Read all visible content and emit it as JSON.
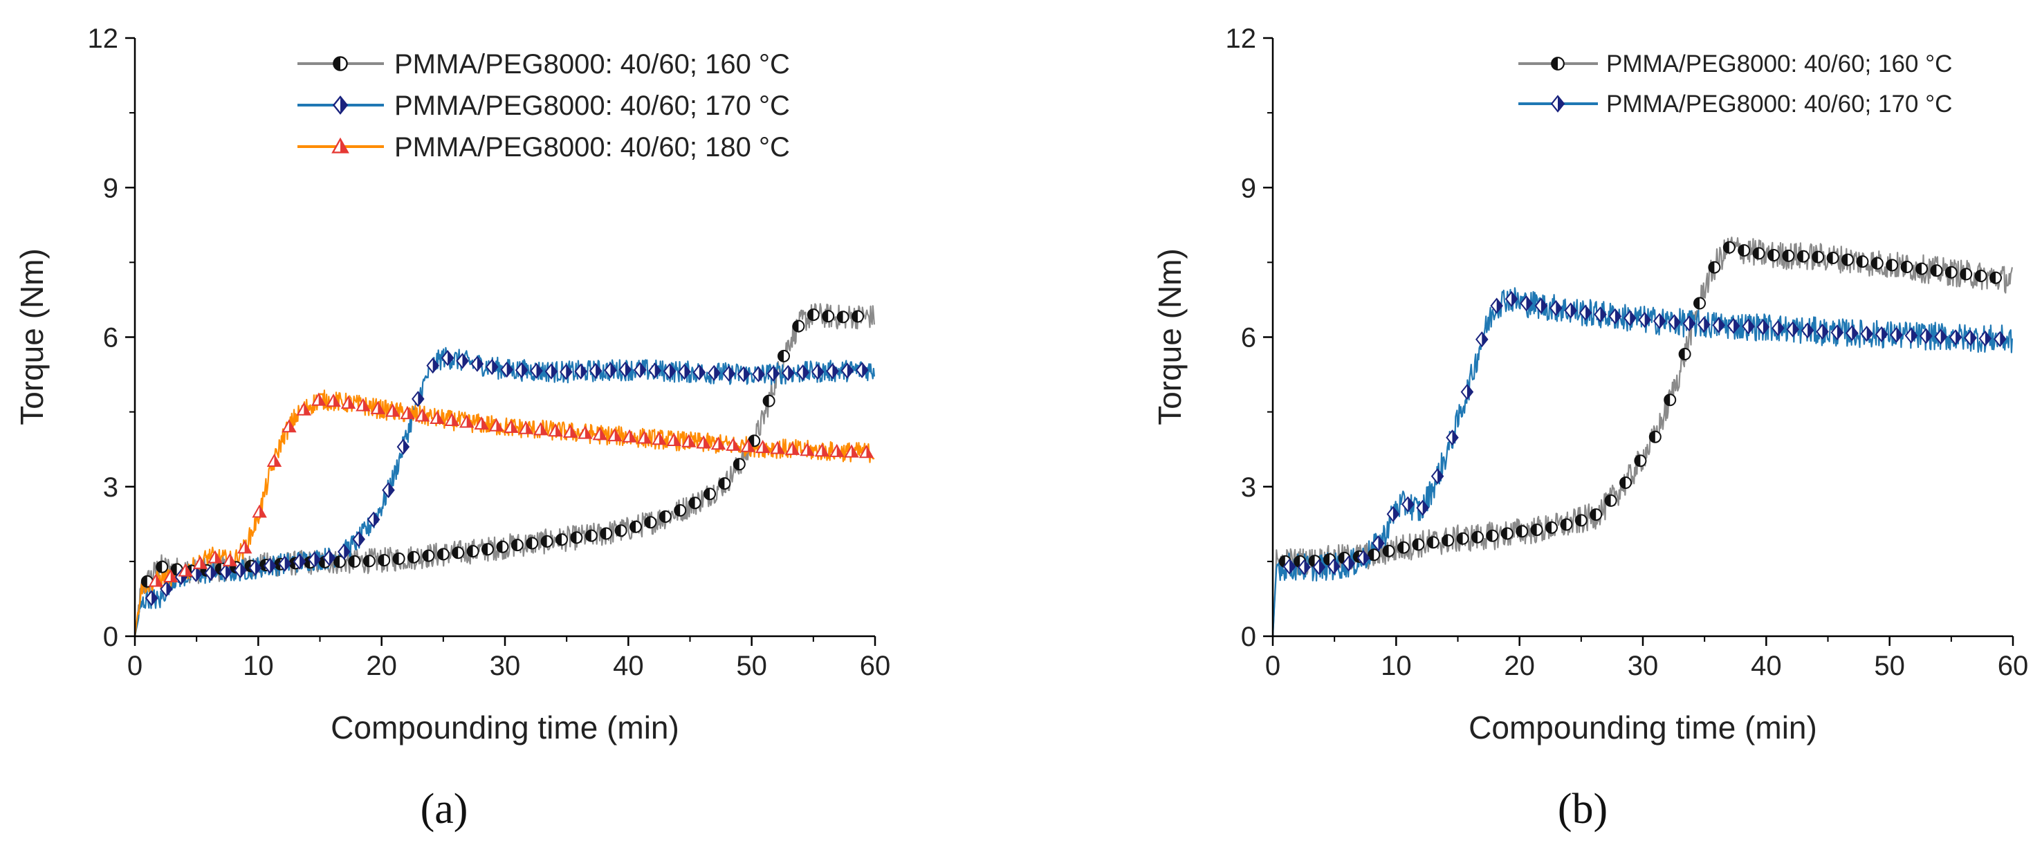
{
  "figure": {
    "panel_labels": [
      "(a)",
      "(b)"
    ]
  },
  "colors": {
    "series_160": "#8a8a8a",
    "series_170": "#1f78b4",
    "series_180": "#ff8c00",
    "marker_160": "#111111",
    "marker_170": "#1a237e",
    "marker_180": "#e53935",
    "axis": "#000000"
  },
  "chart_data": [
    {
      "type": "line",
      "panel": "(a)",
      "xlabel": "Compounding time (min)",
      "ylabel": "Torque (Nm)",
      "xlim": [
        0,
        60
      ],
      "ylim": [
        0,
        12
      ],
      "xticks": [
        0,
        10,
        20,
        30,
        40,
        50,
        60
      ],
      "yticks": [
        0,
        3,
        6,
        9,
        12
      ],
      "legend_position": "top-right",
      "series": [
        {
          "name": "PMMA/PEG8000: 40/60; 160 °C",
          "color": "#8a8a8a",
          "marker": "half-circle",
          "noise": 0.25,
          "x": [
            0,
            0.5,
            1,
            2,
            3,
            5,
            8,
            10,
            14,
            18,
            20,
            24,
            28,
            30,
            34,
            38,
            40,
            42,
            44,
            46,
            48,
            50,
            51,
            52,
            53,
            54,
            55,
            57,
            59,
            60
          ],
          "y": [
            0,
            0.9,
            1.1,
            1.4,
            1.35,
            1.3,
            1.38,
            1.42,
            1.48,
            1.5,
            1.52,
            1.62,
            1.72,
            1.8,
            1.92,
            2.05,
            2.15,
            2.3,
            2.5,
            2.75,
            3.1,
            3.8,
            4.4,
            5.2,
            5.9,
            6.3,
            6.45,
            6.4,
            6.42,
            6.4
          ]
        },
        {
          "name": "PMMA/PEG8000: 40/60; 170 °C",
          "color": "#1f78b4",
          "marker": "half-diamond",
          "noise": 0.22,
          "x": [
            0,
            0.5,
            1,
            2,
            3,
            5,
            8,
            10,
            12,
            14,
            16,
            17,
            18,
            19,
            20,
            21,
            22,
            23,
            24,
            25,
            28,
            30,
            35,
            40,
            45,
            50,
            55,
            60
          ],
          "y": [
            0,
            0.6,
            0.8,
            0.7,
            1.15,
            1.25,
            1.3,
            1.38,
            1.45,
            1.52,
            1.58,
            1.7,
            1.9,
            2.2,
            2.6,
            3.2,
            4.0,
            4.8,
            5.4,
            5.6,
            5.45,
            5.35,
            5.3,
            5.35,
            5.3,
            5.25,
            5.3,
            5.35
          ]
        },
        {
          "name": "PMMA/PEG8000: 40/60; 180 °C",
          "color": "#ff8c00",
          "marker": "half-triangle",
          "noise": 0.2,
          "x": [
            0,
            0.5,
            1,
            3,
            5,
            6,
            8,
            9,
            10,
            11,
            12,
            13,
            14,
            15,
            18,
            20,
            25,
            30,
            35,
            40,
            45,
            50,
            55,
            60
          ],
          "y": [
            0,
            1.0,
            1.05,
            1.2,
            1.4,
            1.6,
            1.5,
            1.8,
            2.4,
            3.3,
            4.0,
            4.4,
            4.6,
            4.75,
            4.65,
            4.55,
            4.35,
            4.2,
            4.1,
            4.0,
            3.9,
            3.8,
            3.72,
            3.68
          ]
        }
      ]
    },
    {
      "type": "line",
      "panel": "(b)",
      "xlabel": "Compounding time (min)",
      "ylabel": "Torque (Nm)",
      "xlim": [
        0,
        60
      ],
      "ylim": [
        0,
        12
      ],
      "xticks": [
        0,
        10,
        20,
        30,
        40,
        50,
        60
      ],
      "yticks": [
        0,
        3,
        6,
        9,
        12
      ],
      "legend_position": "top-right",
      "series": [
        {
          "name": "PMMA/PEG8000: 40/60; 160 °C",
          "color": "#8a8a8a",
          "marker": "half-circle",
          "noise": 0.28,
          "x": [
            0,
            0.3,
            1,
            3,
            5,
            8,
            10,
            12,
            15,
            18,
            20,
            22,
            24,
            26,
            27,
            28,
            29,
            30,
            31,
            32,
            33,
            34,
            35,
            36,
            37,
            40,
            45,
            50,
            55,
            60
          ],
          "y": [
            0,
            1.5,
            1.5,
            1.5,
            1.55,
            1.62,
            1.75,
            1.85,
            1.95,
            2.02,
            2.1,
            2.15,
            2.25,
            2.4,
            2.6,
            2.9,
            3.2,
            3.6,
            4.0,
            4.6,
            5.3,
            6.2,
            7.0,
            7.5,
            7.8,
            7.65,
            7.6,
            7.45,
            7.3,
            7.15
          ]
        },
        {
          "name": "PMMA/PEG8000: 40/60; 170 °C",
          "color": "#1f78b4",
          "marker": "half-diamond",
          "noise": 0.28,
          "x": [
            0,
            0.3,
            1,
            3,
            5,
            7,
            8,
            9,
            10,
            11,
            12,
            13,
            14,
            15,
            16,
            17,
            18,
            19,
            20,
            25,
            30,
            35,
            40,
            45,
            50,
            55,
            60
          ],
          "y": [
            0,
            1.4,
            1.4,
            1.38,
            1.4,
            1.5,
            1.7,
            2.0,
            2.6,
            2.65,
            2.5,
            3.0,
            3.6,
            4.3,
            5.1,
            6.0,
            6.6,
            6.8,
            6.7,
            6.5,
            6.35,
            6.25,
            6.2,
            6.1,
            6.05,
            6.0,
            5.95
          ]
        }
      ]
    }
  ]
}
